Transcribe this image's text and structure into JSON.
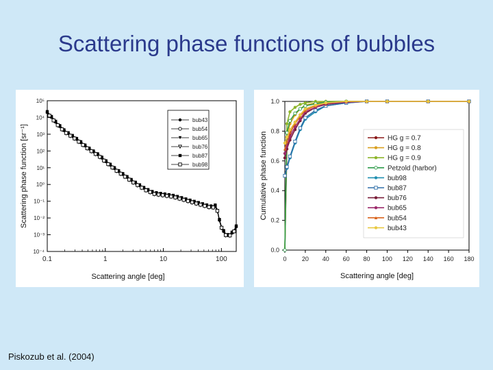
{
  "slide": {
    "title": "Scattering phase functions of bubbles",
    "citation": "Piskozub et al. (2004)"
  },
  "colors": {
    "background": "#cfe8f7",
    "title": "#2b3a8c",
    "panel": "#ffffff"
  },
  "chart_data": [
    {
      "type": "line",
      "scale": {
        "x": "log",
        "y": "log"
      },
      "xlabel": "Scattering angle  [deg]",
      "ylabel": "Scattering phase function  [sr⁻¹]",
      "xlim": [
        0.1,
        180
      ],
      "ylim_exp": [
        -4,
        5
      ],
      "x_ticks": [
        {
          "value": 0.1,
          "label": "0.1"
        },
        {
          "value": 1,
          "label": "1"
        },
        {
          "value": 10,
          "label": "10"
        },
        {
          "value": 100,
          "label": "100"
        }
      ],
      "y_ticks": [
        {
          "exp": -4,
          "label": "10⁻⁴"
        },
        {
          "exp": -3,
          "label": "10⁻³"
        },
        {
          "exp": -2,
          "label": "10⁻²"
        },
        {
          "exp": -1,
          "label": "10⁻¹"
        },
        {
          "exp": 0,
          "label": "10⁰"
        },
        {
          "exp": 1,
          "label": "10¹"
        },
        {
          "exp": 2,
          "label": "10²"
        },
        {
          "exp": 3,
          "label": "10³"
        },
        {
          "exp": 4,
          "label": "10⁴"
        },
        {
          "exp": 5,
          "label": "10⁵"
        }
      ],
      "legend_position": "top-right",
      "series": [
        {
          "name": "bub43",
          "marker": "filled-circle",
          "color": "#000000",
          "y_scale": 1.0
        },
        {
          "name": "bub54",
          "marker": "open-circle",
          "color": "#000000",
          "y_scale": 0.93
        },
        {
          "name": "bub65",
          "marker": "filled-triangle-down",
          "color": "#000000",
          "y_scale": 1.12
        },
        {
          "name": "bub76",
          "marker": "open-triangle-down",
          "color": "#000000",
          "y_scale": 0.85
        },
        {
          "name": "bub87",
          "marker": "filled-square",
          "color": "#000000",
          "y_scale": 1.05
        },
        {
          "name": "bub98",
          "marker": "open-square",
          "color": "#000000",
          "y_scale": 0.9
        }
      ],
      "curve": {
        "x": [
          0.1,
          0.15,
          0.2,
          0.3,
          0.5,
          0.8,
          1,
          1.5,
          2,
          3,
          5,
          7,
          10,
          15,
          20,
          30,
          40,
          50,
          60,
          70,
          75,
          80,
          85,
          90,
          100,
          110,
          120,
          130,
          140,
          150,
          160,
          170,
          180
        ],
        "y": [
          20000,
          4000,
          1500,
          600,
          150,
          50,
          25,
          8,
          4,
          1.5,
          0.5,
          0.3,
          0.25,
          0.2,
          0.15,
          0.1,
          0.075,
          0.06,
          0.05,
          0.045,
          0.05,
          0.055,
          0.03,
          0.01,
          0.003,
          0.0015,
          0.001,
          0.0009,
          0.001,
          0.0012,
          0.0015,
          0.002,
          0.003
        ]
      }
    },
    {
      "type": "line",
      "xlabel": "Scattering angle  [deg]",
      "ylabel": "Cumulative phase function",
      "xlim": [
        0,
        180
      ],
      "ylim": [
        0,
        1
      ],
      "x_ticks": [
        0,
        20,
        40,
        60,
        80,
        100,
        120,
        140,
        160,
        180
      ],
      "y_ticks": [
        "0.0",
        "0.2",
        "0.4",
        "0.6",
        "0.8",
        "1.0"
      ],
      "legend_position": "center-right",
      "series": [
        {
          "name": "HG g = 0.7",
          "color": "#8b1a1a",
          "marker": "dot",
          "values": [
            0,
            0.68,
            0.78,
            0.86,
            0.91,
            0.95,
            0.975,
            0.99,
            1,
            1,
            1,
            1,
            1
          ]
        },
        {
          "name": "HG g = 0.8",
          "color": "#d9a020",
          "marker": "dot",
          "values": [
            0,
            0.76,
            0.85,
            0.91,
            0.95,
            0.975,
            0.99,
            1,
            1,
            1,
            1,
            1,
            1
          ]
        },
        {
          "name": "HG g = 0.9",
          "color": "#8db52a",
          "marker": "dot",
          "values": [
            0,
            0.85,
            0.93,
            0.96,
            0.98,
            0.99,
            1,
            1,
            1,
            1,
            1,
            1,
            1
          ]
        },
        {
          "name": "Petzold (harbor)",
          "color": "#2e9c4a",
          "marker": "circle",
          "values": [
            0,
            0.79,
            0.87,
            0.92,
            0.95,
            0.97,
            0.985,
            0.995,
            1,
            1,
            1,
            1,
            1
          ]
        },
        {
          "name": "bub98",
          "color": "#1f8fb0",
          "marker": "dot",
          "values": [
            0.5,
            0.55,
            0.62,
            0.72,
            0.81,
            0.88,
            0.93,
            0.97,
            0.99,
            1,
            1,
            1,
            1
          ]
        },
        {
          "name": "bub87",
          "color": "#2e6fa8",
          "marker": "square",
          "values": [
            0.5,
            0.56,
            0.63,
            0.73,
            0.82,
            0.89,
            0.94,
            0.97,
            0.99,
            1,
            1,
            1,
            1
          ]
        },
        {
          "name": "bub76",
          "color": "#7a1e3a",
          "marker": "dot",
          "values": [
            0.62,
            0.68,
            0.74,
            0.81,
            0.87,
            0.92,
            0.96,
            0.98,
            0.995,
            1,
            1,
            1,
            1
          ]
        },
        {
          "name": "bub65",
          "color": "#9c2a6c",
          "marker": "dot",
          "values": [
            0.65,
            0.7,
            0.76,
            0.83,
            0.88,
            0.93,
            0.96,
            0.985,
            0.995,
            1,
            1,
            1,
            1
          ]
        },
        {
          "name": "bub54",
          "color": "#d9641e",
          "marker": "triangle",
          "values": [
            0.68,
            0.73,
            0.79,
            0.85,
            0.9,
            0.94,
            0.97,
            0.99,
            1,
            1,
            1,
            1,
            1
          ]
        },
        {
          "name": "bub43",
          "color": "#e8c840",
          "marker": "dot",
          "values": [
            0.72,
            0.76,
            0.81,
            0.86,
            0.91,
            0.95,
            0.975,
            0.99,
            1,
            1,
            1,
            1,
            1
          ]
        }
      ],
      "x": [
        0,
        2,
        5,
        10,
        15,
        20,
        30,
        40,
        60,
        80,
        100,
        140,
        180
      ]
    }
  ]
}
